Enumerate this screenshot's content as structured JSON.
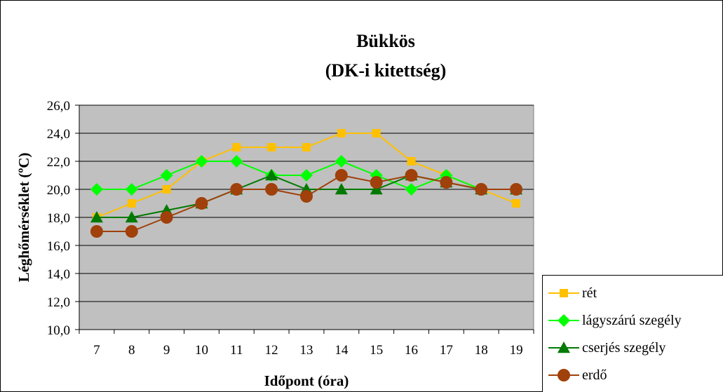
{
  "chart_data": {
    "type": "line",
    "title": "Bükkös",
    "subtitle": "(DK-i kitettség)",
    "xlabel": "Időpont (óra)",
    "ylabel": "Léghőmérséklet (ºC)",
    "categories": [
      "7",
      "8",
      "9",
      "10",
      "11",
      "12",
      "13",
      "14",
      "15",
      "16",
      "17",
      "18",
      "19"
    ],
    "ylim": [
      10,
      26
    ],
    "yticks": [
      "10,0",
      "12,0",
      "14,0",
      "16,0",
      "18,0",
      "20,0",
      "22,0",
      "24,0",
      "26,0"
    ],
    "grid": true,
    "legend_position": "bottom-right",
    "series": [
      {
        "name": "rét",
        "color": "#FFC000",
        "marker": "square",
        "values": [
          18,
          19,
          20,
          22,
          23,
          23,
          23,
          24,
          24,
          22,
          21,
          20,
          19
        ]
      },
      {
        "name": "lágyszárú szegély",
        "color": "#00FF00",
        "marker": "diamond",
        "values": [
          20,
          20,
          21,
          22,
          22,
          21,
          21,
          22,
          21,
          20,
          21,
          20,
          20
        ]
      },
      {
        "name": "cserjés szegély",
        "color": "#007A00",
        "marker": "triangle",
        "values": [
          18,
          18,
          18.5,
          19,
          20,
          21,
          20,
          20,
          20,
          21,
          20.5,
          20,
          20
        ]
      },
      {
        "name": "erdő",
        "color": "#A0400A",
        "marker": "circle",
        "values": [
          17,
          17,
          18,
          19,
          20,
          20,
          19.5,
          21,
          20.5,
          21,
          20.5,
          20,
          20
        ]
      }
    ]
  }
}
